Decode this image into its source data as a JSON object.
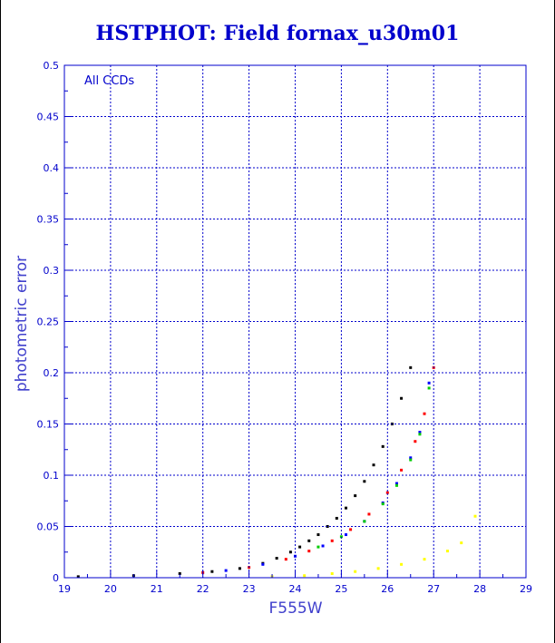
{
  "chart_data": {
    "type": "scatter",
    "title": "HSTPHOT: Field fornax_u30m01",
    "xlabel": "F555W",
    "ylabel": "photometric error",
    "annotation": "All CCDs",
    "xlim": [
      19,
      29
    ],
    "ylim": [
      0,
      0.5
    ],
    "x_ticks": [
      "19",
      "20",
      "21",
      "22",
      "23",
      "24",
      "25",
      "26",
      "27",
      "28",
      "29"
    ],
    "y_ticks": [
      "0",
      "0.05",
      "0.1",
      "0.15",
      "0.2",
      "0.25",
      "0.3",
      "0.35",
      "0.4",
      "0.45",
      "0.5"
    ],
    "grid": true,
    "colors": {
      "title": "#0000cc",
      "axis": "#0000cc",
      "grid": "#0000cc"
    },
    "series": [
      {
        "color": "#000000",
        "x": [
          19.3,
          20.5,
          21.5,
          22.2,
          22.8,
          23.3,
          23.6,
          23.9,
          24.1,
          24.3,
          24.5,
          24.7,
          24.9,
          25.1,
          25.3,
          25.5,
          25.7,
          25.9,
          26.1,
          26.3,
          26.5
        ],
        "y": [
          0.001,
          0.002,
          0.004,
          0.006,
          0.009,
          0.014,
          0.019,
          0.025,
          0.03,
          0.036,
          0.042,
          0.05,
          0.058,
          0.068,
          0.08,
          0.094,
          0.11,
          0.128,
          0.15,
          0.175,
          0.205
        ]
      },
      {
        "color": "#ff0000",
        "x": [
          22.0,
          23.0,
          23.8,
          24.3,
          24.8,
          25.2,
          25.6,
          26.0,
          26.3,
          26.6,
          26.8,
          27.0
        ],
        "y": [
          0.005,
          0.01,
          0.018,
          0.026,
          0.036,
          0.047,
          0.062,
          0.083,
          0.105,
          0.133,
          0.16,
          0.205
        ]
      },
      {
        "color": "#0000ff",
        "x": [
          22.5,
          23.3,
          24.0,
          24.6,
          25.1,
          25.5,
          25.9,
          26.2,
          26.5,
          26.7,
          26.9
        ],
        "y": [
          0.007,
          0.013,
          0.021,
          0.031,
          0.042,
          0.055,
          0.073,
          0.092,
          0.117,
          0.142,
          0.19
        ]
      },
      {
        "color": "#00cc00",
        "x": [
          24.5,
          25.0,
          25.5,
          25.9,
          26.2,
          26.5,
          26.7,
          26.9
        ],
        "y": [
          0.03,
          0.04,
          0.055,
          0.072,
          0.09,
          0.115,
          0.14,
          0.185
        ]
      },
      {
        "color": "#ffff00",
        "x": [
          23.5,
          24.2,
          24.8,
          25.3,
          25.8,
          26.3,
          26.8,
          27.3,
          27.6,
          27.9
        ],
        "y": [
          0.001,
          0.002,
          0.004,
          0.006,
          0.009,
          0.013,
          0.018,
          0.026,
          0.034,
          0.06
        ]
      }
    ]
  }
}
